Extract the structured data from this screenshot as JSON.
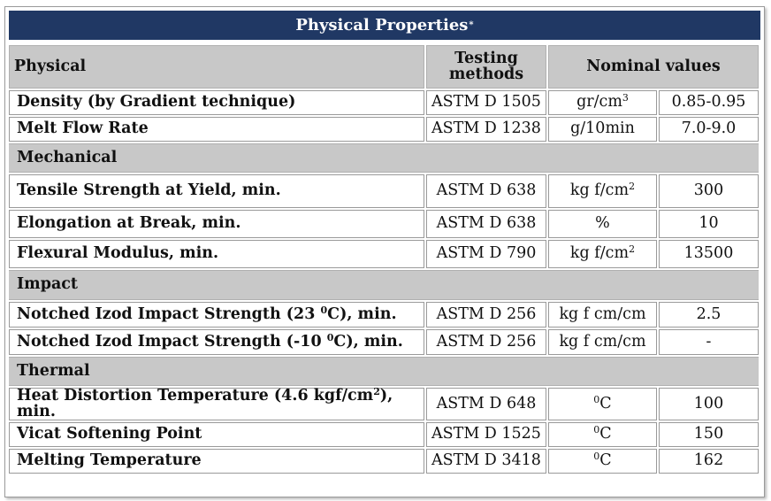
{
  "title": "Physical Properties",
  "title_mark": "*",
  "header": {
    "physical": "Physical",
    "testing_methods_line1": "Testing",
    "testing_methods_line2": "methods",
    "nominal_values": "Nominal values"
  },
  "sections": {
    "mechanical": "Mechanical",
    "impact": "Impact",
    "thermal": "Thermal"
  },
  "rows": [
    {
      "property": "Density (by Gradient technique)",
      "method": "ASTM D 1505",
      "unit": "gr/cm",
      "unit_sup": "3",
      "value": "0.85-0.95"
    },
    {
      "property": "Melt Flow Rate",
      "method": "ASTM D 1238",
      "unit": "g/10min",
      "unit_sup": "",
      "value": "7.0-9.0"
    },
    {
      "property": "Tensile Strength at Yield, min.",
      "method": "ASTM D 638",
      "unit": "kg f/cm",
      "unit_sup": "2",
      "value": "300"
    },
    {
      "property": "Elongation at Break, min.",
      "method": "ASTM D 638",
      "unit": "%",
      "unit_sup": "",
      "value": "10"
    },
    {
      "property": "Flexural Modulus, min.",
      "method": "ASTM D 790",
      "unit": "kg f/cm",
      "unit_sup": "2",
      "value": "13500"
    },
    {
      "property_pre": "Notched Izod Impact Strength (23 ",
      "property_sup": "0",
      "property_post": "C), min.",
      "method": "ASTM D 256",
      "unit": "kg f cm/cm",
      "unit_sup": "",
      "value": "2.5"
    },
    {
      "property_pre": "Notched Izod Impact Strength (-10 ",
      "property_sup": "0",
      "property_post": "C), min.",
      "method": "ASTM D 256",
      "unit": "kg f cm/cm",
      "unit_sup": "",
      "value": "-"
    },
    {
      "property_pre": "Heat Distortion Temperature (4.6 kgf/cm",
      "property_sup": "2",
      "property_post": "), min.",
      "method": "ASTM D 648",
      "unit_pre": "0",
      "unit": "C",
      "value": "100"
    },
    {
      "property": "Vicat Softening Point",
      "method": "ASTM D 1525",
      "unit_pre": "0",
      "unit": "C",
      "value": "150"
    },
    {
      "property": "Melting Temperature",
      "method": "ASTM D 3418",
      "unit_pre": "0",
      "unit": "C",
      "value": "162"
    }
  ]
}
